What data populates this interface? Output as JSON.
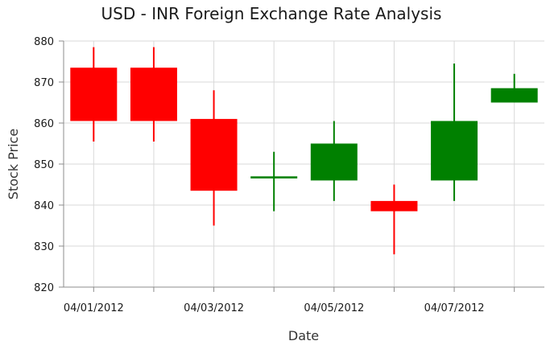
{
  "chart_data": {
    "type": "candlestick",
    "title": "USD - INR Foreign Exchange Rate Analysis",
    "xlabel": "Date",
    "ylabel": "Stock Price",
    "ylim": [
      820,
      880
    ],
    "y_ticks": [
      820,
      830,
      840,
      850,
      860,
      870,
      880
    ],
    "x_tick_labels": [
      "04/01/2012",
      "",
      "04/03/2012",
      "",
      "04/05/2012",
      "",
      "04/07/2012",
      ""
    ],
    "grid": true,
    "colors": {
      "bullish": "#008000",
      "bearish": "#ff0000"
    },
    "candles": [
      {
        "open": 873.5,
        "high": 878.5,
        "low": 855.5,
        "close": 860.5
      },
      {
        "open": 873.5,
        "high": 878.5,
        "low": 855.5,
        "close": 860.5
      },
      {
        "open": 861.0,
        "high": 868.0,
        "low": 835.0,
        "close": 843.5
      },
      {
        "open": 846.5,
        "high": 853.0,
        "low": 838.5,
        "close": 847.0
      },
      {
        "open": 846.0,
        "high": 860.5,
        "low": 841.0,
        "close": 855.0
      },
      {
        "open": 841.0,
        "high": 845.0,
        "low": 828.0,
        "close": 838.5
      },
      {
        "open": 846.0,
        "high": 874.5,
        "low": 841.0,
        "close": 860.5
      },
      {
        "open": 865.0,
        "high": 872.0,
        "low": 865.0,
        "close": 868.5
      }
    ]
  }
}
